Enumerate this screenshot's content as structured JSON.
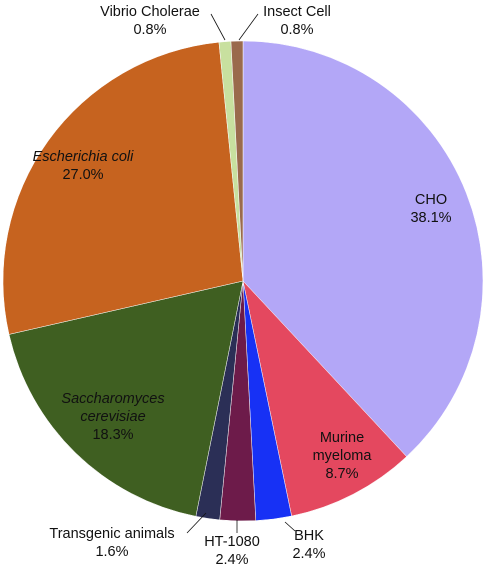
{
  "chart_data": {
    "type": "pie",
    "title": "",
    "slices": [
      {
        "label": "CHO",
        "value": 38.1,
        "value_text": "38.1%",
        "color": "#b3a7f7",
        "label_italic": false
      },
      {
        "label": "Murine myeloma",
        "value": 8.7,
        "value_text": "8.7%",
        "color": "#e4485f",
        "label_italic": false
      },
      {
        "label": "BHK",
        "value": 2.4,
        "value_text": "2.4%",
        "color": "#1731f5",
        "label_italic": false
      },
      {
        "label": "HT-1080",
        "value": 2.4,
        "value_text": "2.4%",
        "color": "#6d1b4a",
        "label_italic": false
      },
      {
        "label": "Transgenic animals",
        "value": 1.6,
        "value_text": "1.6%",
        "color": "#2b2f56",
        "label_italic": false
      },
      {
        "label": "Saccharomyces cerevisiae",
        "value": 18.3,
        "value_text": "18.3%",
        "color": "#3f5f21",
        "label_italic": true
      },
      {
        "label": "Escherichia coli",
        "value": 27.0,
        "value_text": "27.0%",
        "color": "#c6631f",
        "label_italic": true
      },
      {
        "label": "Vibrio Cholerae",
        "value": 0.8,
        "value_text": "0.8%",
        "color": "#c8e09f",
        "label_italic": false
      },
      {
        "label": "Insect Cell",
        "value": 0.8,
        "value_text": "0.8%",
        "color": "#9a6a4c",
        "label_italic": false
      }
    ]
  }
}
